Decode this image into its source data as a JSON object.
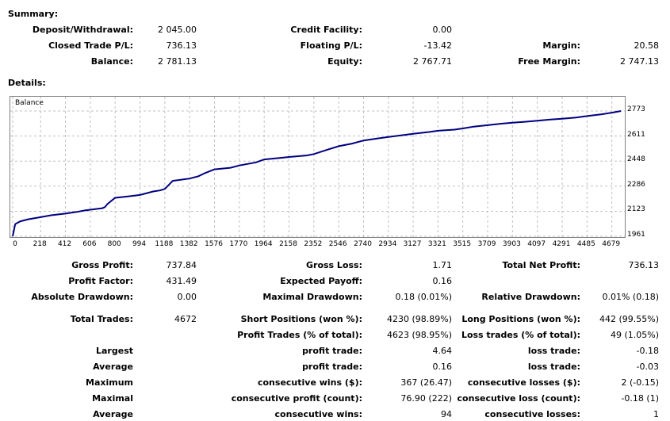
{
  "summary": {
    "title": "Summary:",
    "deposit_label": "Deposit/Withdrawal:",
    "deposit_value": "2 045.00",
    "credit_label": "Credit Facility:",
    "credit_value": "0.00",
    "closed_pl_label": "Closed Trade P/L:",
    "closed_pl_value": "736.13",
    "floating_pl_label": "Floating P/L:",
    "floating_pl_value": "-13.42",
    "margin_label": "Margin:",
    "margin_value": "20.58",
    "balance_label": "Balance:",
    "balance_value": "2 781.13",
    "equity_label": "Equity:",
    "equity_value": "2 767.71",
    "free_margin_label": "Free Margin:",
    "free_margin_value": "2 747.13"
  },
  "details": {
    "title": "Details:"
  },
  "chart_data": {
    "type": "line",
    "legend": "Balance",
    "series": [
      {
        "name": "Balance",
        "x": [
          0,
          20,
          60,
          120,
          218,
          300,
          412,
          500,
          560,
          606,
          700,
          720,
          740,
          800,
          900,
          994,
          1100,
          1150,
          1188,
          1250,
          1382,
          1450,
          1500,
          1576,
          1700,
          1770,
          1900,
          1964,
          2100,
          2158,
          2300,
          2352,
          2450,
          2546,
          2650,
          2740,
          2850,
          2934,
          3050,
          3127,
          3250,
          3321,
          3450,
          3515,
          3600,
          3709,
          3800,
          3903,
          4000,
          4097,
          4200,
          4291,
          4400,
          4485,
          4600,
          4679,
          4750
        ],
        "values": [
          1961,
          2040,
          2058,
          2071,
          2085,
          2097,
          2108,
          2119,
          2128,
          2133,
          2143,
          2150,
          2170,
          2210,
          2219,
          2229,
          2252,
          2258,
          2268,
          2320,
          2335,
          2350,
          2370,
          2395,
          2405,
          2420,
          2440,
          2459,
          2470,
          2475,
          2485,
          2494,
          2520,
          2545,
          2562,
          2582,
          2595,
          2605,
          2617,
          2625,
          2637,
          2645,
          2652,
          2660,
          2672,
          2681,
          2690,
          2697,
          2703,
          2710,
          2718,
          2723,
          2731,
          2740,
          2752,
          2762,
          2773
        ]
      }
    ],
    "y_ticks": [
      "2773",
      "2611",
      "2448",
      "2286",
      "2123",
      "1961"
    ],
    "x_ticks": [
      "0",
      "218",
      "412",
      "606",
      "800",
      "994",
      "1188",
      "1382",
      "1576",
      "1770",
      "1964",
      "2158",
      "2352",
      "2546",
      "2740",
      "2934",
      "3127",
      "3321",
      "3515",
      "3709",
      "3903",
      "4097",
      "4291",
      "4485",
      "4679"
    ],
    "ylim": [
      1961,
      2773
    ],
    "xlim": [
      0,
      4780
    ],
    "grid": true,
    "line_color": "#000080"
  },
  "stats": {
    "gross_profit_label": "Gross Profit:",
    "gross_profit_value": "737.84",
    "gross_loss_label": "Gross Loss:",
    "gross_loss_value": "1.71",
    "total_net_profit_label": "Total Net Profit:",
    "total_net_profit_value": "736.13",
    "profit_factor_label": "Profit Factor:",
    "profit_factor_value": "431.49",
    "expected_payoff_label": "Expected Payoff:",
    "expected_payoff_value": "0.16",
    "abs_drawdown_label": "Absolute Drawdown:",
    "abs_drawdown_value": "0.00",
    "max_drawdown_label": "Maximal Drawdown:",
    "max_drawdown_value": "0.18 (0.01%)",
    "rel_drawdown_label": "Relative Drawdown:",
    "rel_drawdown_value": "0.01% (0.18)",
    "total_trades_label": "Total Trades:",
    "total_trades_value": "4672",
    "short_pos_label": "Short Positions (won %):",
    "short_pos_value": "4230 (98.89%)",
    "long_pos_label": "Long Positions (won %):",
    "long_pos_value": "442 (99.55%)",
    "profit_trades_label": "Profit Trades (% of total):",
    "profit_trades_value": "4623 (98.95%)",
    "loss_trades_label": "Loss trades (% of total):",
    "loss_trades_value": "49 (1.05%)",
    "largest_label": "Largest",
    "largest_profit_label": "profit trade:",
    "largest_profit_value": "4.64",
    "largest_loss_label": "loss trade:",
    "largest_loss_value": "-0.18",
    "average_label": "Average",
    "average_profit_label": "profit trade:",
    "average_profit_value": "0.16",
    "average_loss_label": "loss trade:",
    "average_loss_value": "-0.03",
    "maximum_label": "Maximum",
    "max_cons_wins_label": "consecutive wins ($):",
    "max_cons_wins_value": "367 (26.47)",
    "max_cons_losses_label": "consecutive losses ($):",
    "max_cons_losses_value": "2 (-0.15)",
    "maximal_label": "Maximal",
    "maximal_cons_profit_label": "consecutive profit (count):",
    "maximal_cons_profit_value": "76.90 (222)",
    "maximal_cons_loss_label": "consecutive loss (count):",
    "maximal_cons_loss_value": "-0.18 (1)",
    "average2_label": "Average",
    "avg_cons_wins_label": "consecutive wins:",
    "avg_cons_wins_value": "94",
    "avg_cons_losses_label": "consecutive losses:",
    "avg_cons_losses_value": "1"
  }
}
